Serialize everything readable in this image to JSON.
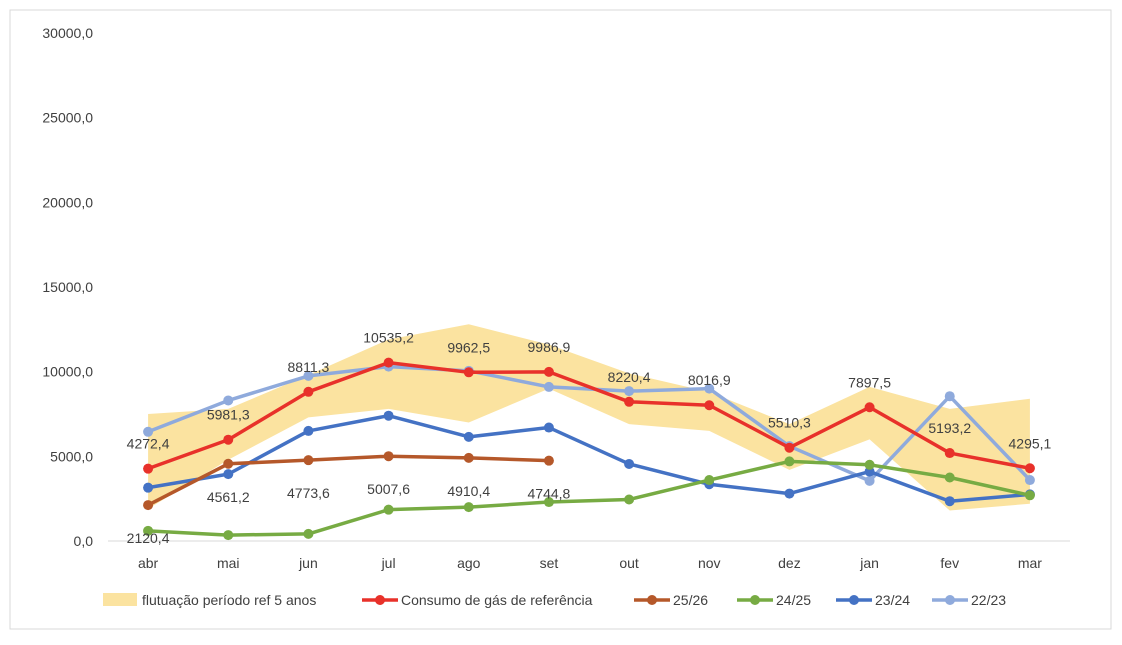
{
  "chart_data": {
    "type": "line",
    "title": "",
    "xlabel": "",
    "ylabel": "",
    "categories": [
      "abr",
      "mai",
      "jun",
      "jul",
      "ago",
      "set",
      "out",
      "nov",
      "dez",
      "jan",
      "fev",
      "mar"
    ],
    "ylim": [
      0,
      30000
    ],
    "y_ticks": [
      0,
      5000,
      10000,
      15000,
      20000,
      25000,
      30000
    ],
    "y_tick_labels": [
      "0,0",
      "5000,0",
      "10000,0",
      "15000,0",
      "20000,0",
      "25000,0",
      "30000,0"
    ],
    "grid": false,
    "legend_position": "bottom",
    "band": {
      "name": "flutuação período ref 5 anos",
      "color": "#FBE3A0",
      "lower": [
        1900,
        4800,
        7300,
        7800,
        7000,
        9000,
        6900,
        6500,
        4200,
        6000,
        1800,
        2200
      ],
      "upper": [
        7500,
        7800,
        9800,
        11900,
        12800,
        11600,
        9900,
        8800,
        6900,
        9100,
        7800,
        8400
      ]
    },
    "series": [
      {
        "name": "Consumo de gás de referência",
        "color": "#E8312A",
        "values": [
          4272.4,
          5981.3,
          8811.3,
          10535.2,
          9962.5,
          9986.9,
          8220.4,
          8016.9,
          5510.3,
          7897.5,
          5193.2,
          4295.1
        ],
        "labels": [
          "4272,4",
          "5981,3",
          "8811,3",
          "10535,2",
          "9962,5",
          "9986,9",
          "8220,4",
          "8016,9",
          "5510,3",
          "7897,5",
          "5193,2",
          "4295,1"
        ]
      },
      {
        "name": "25/26",
        "color": "#B5582A",
        "values": [
          2120.4,
          4561.2,
          4773.6,
          5007.6,
          4910.4,
          4744.8,
          null,
          null,
          null,
          null,
          null,
          null
        ],
        "labels": [
          "2120,4",
          "4561,2",
          "4773,6",
          "5007,6",
          "4910,4",
          "4744,8",
          null,
          null,
          null,
          null,
          null,
          null
        ]
      },
      {
        "name": "24/25",
        "color": "#77AB43",
        "values": [
          600,
          350,
          420,
          1850,
          2000,
          2300,
          2450,
          3600,
          4700,
          4500,
          3750,
          2700
        ]
      },
      {
        "name": "23/24",
        "color": "#4472C4",
        "values": [
          3150,
          3950,
          6500,
          7400,
          6150,
          6700,
          4550,
          3350,
          2800,
          4100,
          2350,
          2750
        ]
      },
      {
        "name": "22/23",
        "color": "#8FAADC",
        "values": [
          6450,
          8300,
          9750,
          10300,
          10050,
          9100,
          8850,
          9000,
          5600,
          3550,
          8550,
          3600
        ]
      }
    ]
  }
}
